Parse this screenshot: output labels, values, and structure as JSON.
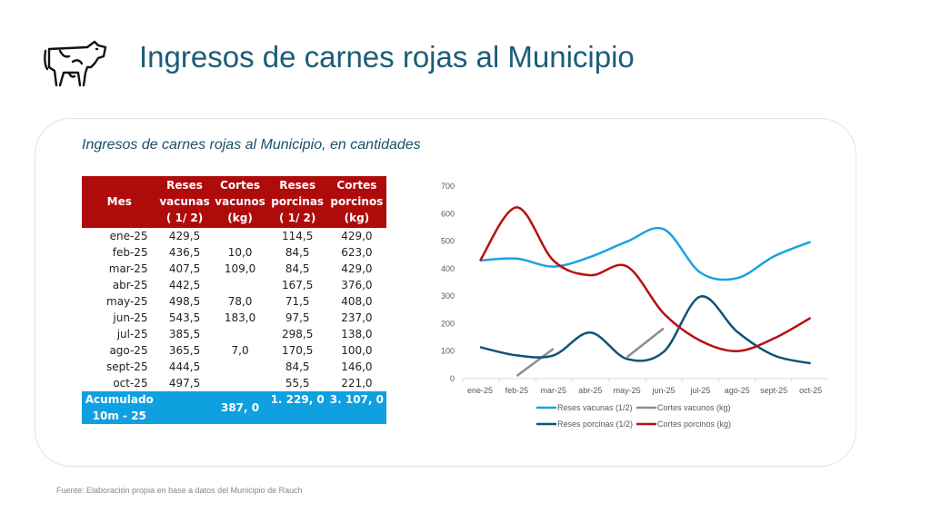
{
  "header": {
    "title": "Ingresos de carnes rojas al Municipio",
    "icon": "cow-icon"
  },
  "panel": {
    "subtitle": "Ingresos de carnes rojas al Municipio, en cantidades"
  },
  "table": {
    "headers": [
      [
        "Mes"
      ],
      [
        "Reses",
        "vacunas",
        "( 1/ 2)"
      ],
      [
        "Cortes",
        "vacunos",
        "(kg)"
      ],
      [
        "Reses",
        "porcinas",
        "( 1/ 2)"
      ],
      [
        "Cortes",
        "porcinos",
        "(kg)"
      ]
    ],
    "rows": [
      [
        "ene-25",
        "429,5",
        "",
        "114,5",
        "429,0"
      ],
      [
        "feb-25",
        "436,5",
        "10,0",
        "84,5",
        "623,0"
      ],
      [
        "mar-25",
        "407,5",
        "109,0",
        "84,5",
        "429,0"
      ],
      [
        "abr-25",
        "442,5",
        "",
        "167,5",
        "376,0"
      ],
      [
        "may-25",
        "498,5",
        "78,0",
        "71,5",
        "408,0"
      ],
      [
        "jun-25",
        "543,5",
        "183,0",
        "97,5",
        "237,0"
      ],
      [
        "jul-25",
        "385,5",
        "",
        "298,5",
        "138,0"
      ],
      [
        "ago-25",
        "365,5",
        "7,0",
        "170,5",
        "100,0"
      ],
      [
        "sept-25",
        "444,5",
        "",
        "84,5",
        "146,0"
      ],
      [
        "oct-25",
        "497,5",
        "",
        "55,5",
        "221,0"
      ]
    ],
    "total": {
      "label1": "Acumulado",
      "label2": "10m - 25",
      "reses_vacunas": "",
      "cortes_vacunos": "387, 0",
      "reses_porcinas": "1. 229, 0",
      "cortes_porcinos": "3. 107, 0"
    }
  },
  "chart_data": {
    "type": "line",
    "categories": [
      "ene-25",
      "feb-25",
      "mar-25",
      "abr-25",
      "may-25",
      "jun-25",
      "jul-25",
      "ago-25",
      "sept-25",
      "oct-25"
    ],
    "ylim": [
      0,
      700
    ],
    "yticks": [
      0,
      100,
      200,
      300,
      400,
      500,
      600,
      700
    ],
    "legend_position": "bottom",
    "series": [
      {
        "name": "Reses vacunas (1/2)",
        "color": "#1aa3e0",
        "values": [
          429.5,
          436.5,
          407.5,
          442.5,
          498.5,
          543.5,
          385.5,
          365.5,
          444.5,
          497.5
        ]
      },
      {
        "name": "Cortes vacunos (kg)",
        "color": "#8c8c8c",
        "values": [
          null,
          10,
          109,
          null,
          78,
          183,
          null,
          7,
          null,
          null
        ]
      },
      {
        "name": "Reses porcinas (1/2)",
        "color": "#0e5478",
        "values": [
          114.5,
          84.5,
          84.5,
          167.5,
          71.5,
          97.5,
          298.5,
          170.5,
          84.5,
          55.5
        ]
      },
      {
        "name": "Cortes porcinos (kg)",
        "color": "#b80f0f",
        "values": [
          429,
          623,
          429,
          376,
          408,
          237,
          138,
          100,
          146,
          221
        ]
      }
    ]
  },
  "footer": {
    "source": "Fuente: Elaboración propia en base a datos del Municipio de Rauch"
  }
}
